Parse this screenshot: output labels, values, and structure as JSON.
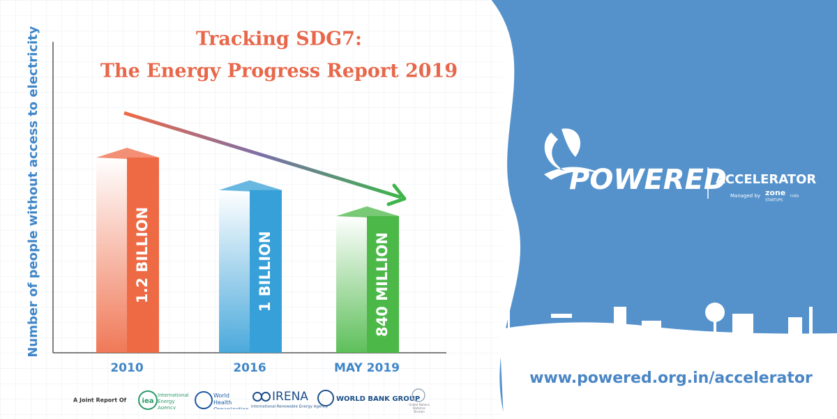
{
  "chart_data": {
    "type": "bar",
    "title_lines": [
      "Tracking SDG7:",
      "The Energy Progress Report 2019"
    ],
    "y_label": "Number of people without access to electricity",
    "categories": [
      "2010",
      "2016",
      "MAY 2019"
    ],
    "values": [
      1200000000,
      1000000000,
      840000000
    ],
    "value_labels": [
      "1.2 BILLION",
      "1 BILLION",
      "840 MILLION"
    ],
    "colors": [
      "#ee6a45",
      "#37a0d8",
      "#4cb848"
    ]
  },
  "partners": {
    "intro": "A Joint Report Of",
    "iea": "iea",
    "iea_name": "International Energy Agency",
    "who": "World Health Organization",
    "irena": "IRENA",
    "irena_name": "International Renewable Energy Agency",
    "world_bank": "WORLD BANK GROUP",
    "un": "United Nations Statistics Division"
  },
  "branding": {
    "name": "POWERED",
    "program": "ACCELERATOR",
    "managed_by": "Managed by",
    "zone": "zone",
    "startups": "STARTUPS",
    "country": "India",
    "url": "www.powered.org.in/accelerator"
  }
}
